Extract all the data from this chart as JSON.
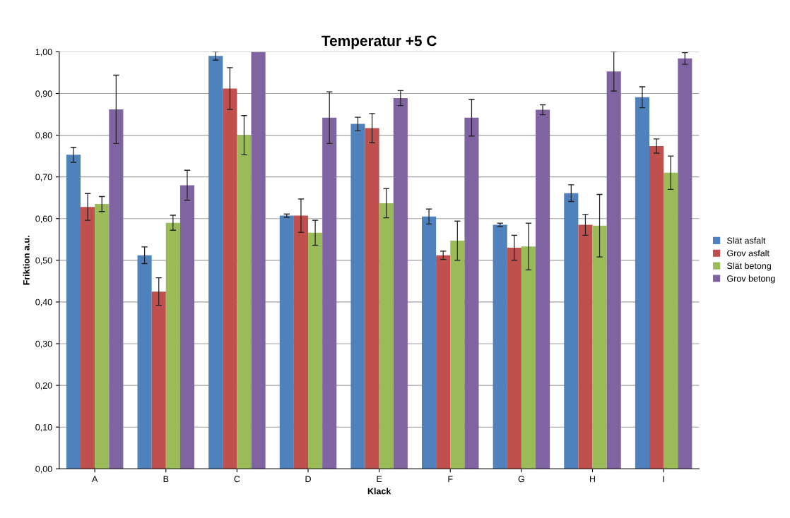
{
  "chart_data": {
    "type": "bar",
    "title": "Temperatur +5 C",
    "xlabel": "Klack",
    "ylabel": "Friktion a.u.",
    "categories": [
      "A",
      "B",
      "C",
      "D",
      "E",
      "F",
      "G",
      "H",
      "I"
    ],
    "series": [
      {
        "name": "Slät asfalt",
        "color": "#4f81bd",
        "values": [
          0.753,
          0.512,
          0.99,
          0.607,
          0.827,
          0.605,
          0.585,
          0.661,
          0.891
        ],
        "errors": [
          0.018,
          0.02,
          0.01,
          0.004,
          0.016,
          0.018,
          0.004,
          0.02,
          0.025
        ]
      },
      {
        "name": "Grov asfalt",
        "color": "#c0504d",
        "values": [
          0.628,
          0.425,
          0.912,
          0.607,
          0.817,
          0.512,
          0.53,
          0.585,
          0.774
        ],
        "errors": [
          0.032,
          0.033,
          0.05,
          0.04,
          0.035,
          0.01,
          0.03,
          0.025,
          0.017
        ]
      },
      {
        "name": "Slät betong",
        "color": "#9bbb59",
        "values": [
          0.635,
          0.59,
          0.8,
          0.566,
          0.637,
          0.547,
          0.533,
          0.583,
          0.71
        ],
        "errors": [
          0.018,
          0.018,
          0.047,
          0.03,
          0.035,
          0.047,
          0.056,
          0.075,
          0.04
        ]
      },
      {
        "name": "Grov betong",
        "color": "#8064a2",
        "values": [
          0.862,
          0.68,
          1.0,
          0.842,
          0.889,
          0.842,
          0.861,
          0.953,
          0.984
        ],
        "errors": [
          0.082,
          0.036,
          null,
          0.062,
          0.018,
          0.044,
          0.012,
          0.047,
          0.014
        ]
      }
    ],
    "ylim": [
      0,
      1
    ],
    "yticks": [
      {
        "value": 0,
        "label": "0,00"
      },
      {
        "value": 0.1,
        "label": "0,10"
      },
      {
        "value": 0.2,
        "label": "0,20"
      },
      {
        "value": 0.3,
        "label": "0,30"
      },
      {
        "value": 0.4,
        "label": "0,40"
      },
      {
        "value": 0.5,
        "label": "0,50"
      },
      {
        "value": 0.6,
        "label": "0,60"
      },
      {
        "value": 0.7,
        "label": "0,70"
      },
      {
        "value": 0.8,
        "label": "0,80"
      },
      {
        "value": 0.9,
        "label": "0,90"
      },
      {
        "value": 1,
        "label": "1,00"
      }
    ],
    "grid": "y",
    "legend": "right"
  }
}
